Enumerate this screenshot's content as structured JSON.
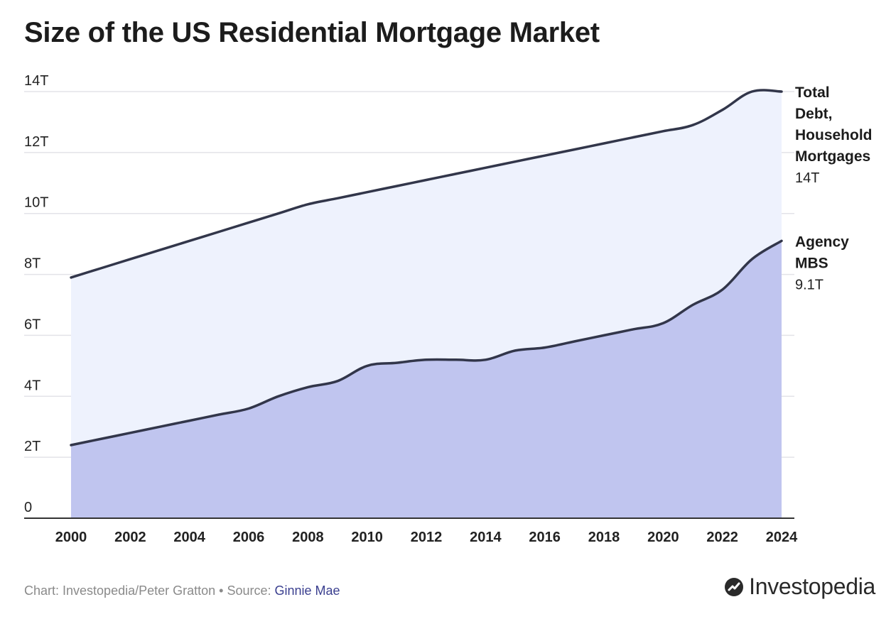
{
  "title": "Size of the US Residential Mortgage Market",
  "chart_data": {
    "type": "area",
    "title": "Size of the US Residential Mortgage Market",
    "xlabel": "",
    "ylabel": "",
    "x": [
      2000,
      2001,
      2002,
      2003,
      2004,
      2005,
      2006,
      2007,
      2008,
      2009,
      2010,
      2011,
      2012,
      2013,
      2014,
      2015,
      2016,
      2017,
      2018,
      2019,
      2020,
      2021,
      2022,
      2023,
      2024
    ],
    "xticks": [
      "2000",
      "2002",
      "2004",
      "2006",
      "2008",
      "2010",
      "2012",
      "2014",
      "2016",
      "2018",
      "2020",
      "2022",
      "2024"
    ],
    "xlim": [
      2000,
      2024
    ],
    "ylim": [
      0,
      14
    ],
    "yticks": [
      {
        "value": 0,
        "label": "0"
      },
      {
        "value": 2,
        "label": "2T"
      },
      {
        "value": 4,
        "label": "4T"
      },
      {
        "value": 6,
        "label": "6T"
      },
      {
        "value": 8,
        "label": "8T"
      },
      {
        "value": 10,
        "label": "10T"
      },
      {
        "value": 12,
        "label": "12T"
      },
      {
        "value": 14,
        "label": "14T"
      }
    ],
    "grid": true,
    "series": [
      {
        "name": "Total Debt, Household Mortgages",
        "label_lines": [
          "Total",
          "Debt,",
          "Household",
          "Mortgages"
        ],
        "end_value_label": "14T",
        "fill": "#eef2fd",
        "line": "#32364a",
        "values": [
          7.9,
          8.2,
          8.5,
          8.8,
          9.1,
          9.4,
          9.7,
          10.0,
          10.3,
          10.5,
          10.7,
          10.9,
          11.1,
          11.3,
          11.5,
          11.7,
          11.9,
          12.1,
          12.3,
          12.5,
          12.7,
          12.9,
          13.4,
          14.0,
          14.0
        ]
      },
      {
        "name": "Agency MBS",
        "label_lines": [
          "Agency",
          "MBS"
        ],
        "end_value_label": "9.1T",
        "fill": "#c0c5ef",
        "line": "#32364a",
        "values": [
          2.4,
          2.6,
          2.8,
          3.0,
          3.2,
          3.4,
          3.6,
          4.0,
          4.3,
          4.5,
          5.0,
          5.1,
          5.2,
          5.2,
          5.2,
          5.5,
          5.6,
          5.8,
          6.0,
          6.2,
          6.4,
          7.0,
          7.5,
          8.5,
          9.1
        ]
      }
    ]
  },
  "footer": {
    "prefix": "Chart: Investopedia/Peter Gratton • Source: ",
    "source": "Ginnie Mae"
  },
  "brand": {
    "name": "Investopedia",
    "icon": "investopedia-logo-icon"
  },
  "colors": {
    "axis": "#333333",
    "grid": "#e3e3e8",
    "tick_text": "#222222"
  }
}
